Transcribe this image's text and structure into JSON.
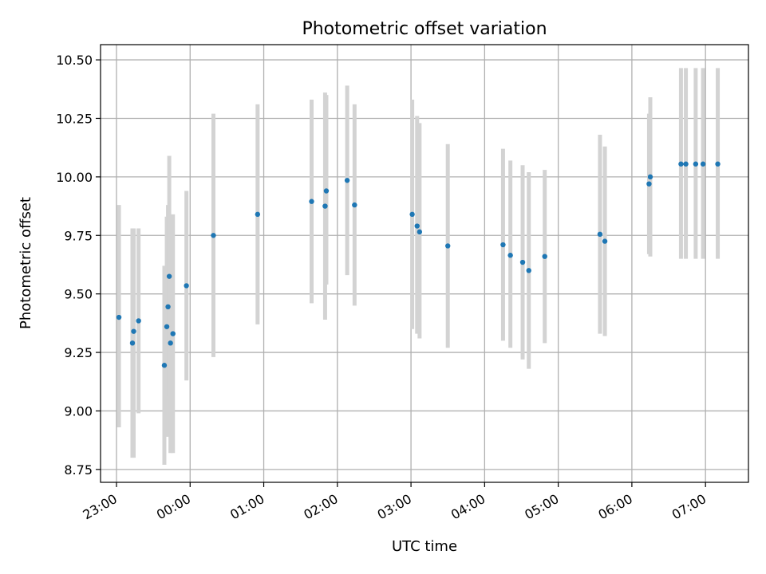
{
  "chart_data": {
    "type": "scatter",
    "title": "Photometric offset variation",
    "xlabel": "UTC time",
    "ylabel": "Photometric offset",
    "x_is_time": true,
    "x_range": [
      "22:47",
      "07:35"
    ],
    "ylim": [
      8.695,
      10.565
    ],
    "x_ticks": [
      "23:00",
      "00:00",
      "01:00",
      "02:00",
      "03:00",
      "04:00",
      "05:00",
      "06:00",
      "07:00"
    ],
    "y_ticks": [
      8.75,
      9.0,
      9.25,
      9.5,
      9.75,
      10.0,
      10.25,
      10.5
    ],
    "y_tick_labels": [
      "8.75",
      "9.00",
      "9.25",
      "9.50",
      "9.75",
      "10.00",
      "10.25",
      "10.50"
    ],
    "grid": true,
    "colors": {
      "point": "#1f77b4",
      "errorbar": "#d3d3d3",
      "grid": "#b0b0b0"
    },
    "points": [
      {
        "t": "23:02",
        "y": 9.4,
        "lo": 8.93,
        "hi": 9.88
      },
      {
        "t": "23:13",
        "y": 9.29,
        "lo": 8.8,
        "hi": 9.78
      },
      {
        "t": "23:14",
        "y": 9.34,
        "lo": 8.8,
        "hi": 9.78
      },
      {
        "t": "23:18",
        "y": 9.385,
        "lo": 8.99,
        "hi": 9.78
      },
      {
        "t": "23:39",
        "y": 9.195,
        "lo": 8.77,
        "hi": 9.62
      },
      {
        "t": "23:41",
        "y": 9.36,
        "lo": 8.89,
        "hi": 9.83
      },
      {
        "t": "23:42",
        "y": 9.445,
        "lo": 8.89,
        "hi": 9.88
      },
      {
        "t": "23:43",
        "y": 9.575,
        "lo": 9.06,
        "hi": 10.09
      },
      {
        "t": "23:44",
        "y": 9.29,
        "lo": 8.82,
        "hi": 9.76
      },
      {
        "t": "23:46",
        "y": 9.33,
        "lo": 8.82,
        "hi": 9.84
      },
      {
        "t": "23:57",
        "y": 9.535,
        "lo": 9.13,
        "hi": 9.94
      },
      {
        "t": "00:19",
        "y": 9.75,
        "lo": 9.23,
        "hi": 10.27
      },
      {
        "t": "00:55",
        "y": 9.84,
        "lo": 9.37,
        "hi": 10.31
      },
      {
        "t": "01:39",
        "y": 9.895,
        "lo": 9.46,
        "hi": 10.33
      },
      {
        "t": "01:50",
        "y": 9.875,
        "lo": 9.39,
        "hi": 10.36
      },
      {
        "t": "01:51",
        "y": 9.94,
        "lo": 9.54,
        "hi": 10.35
      },
      {
        "t": "02:08",
        "y": 9.985,
        "lo": 9.58,
        "hi": 10.39
      },
      {
        "t": "02:14",
        "y": 9.88,
        "lo": 9.45,
        "hi": 10.31
      },
      {
        "t": "03:01",
        "y": 9.84,
        "lo": 9.35,
        "hi": 10.33
      },
      {
        "t": "03:05",
        "y": 9.79,
        "lo": 9.33,
        "hi": 10.26
      },
      {
        "t": "03:07",
        "y": 9.765,
        "lo": 9.31,
        "hi": 10.23
      },
      {
        "t": "03:30",
        "y": 9.705,
        "lo": 9.27,
        "hi": 10.14
      },
      {
        "t": "04:15",
        "y": 9.71,
        "lo": 9.3,
        "hi": 10.12
      },
      {
        "t": "04:21",
        "y": 9.665,
        "lo": 9.27,
        "hi": 10.07
      },
      {
        "t": "04:31",
        "y": 9.635,
        "lo": 9.22,
        "hi": 10.05
      },
      {
        "t": "04:36",
        "y": 9.6,
        "lo": 9.18,
        "hi": 10.02
      },
      {
        "t": "04:49",
        "y": 9.66,
        "lo": 9.29,
        "hi": 10.03
      },
      {
        "t": "05:34",
        "y": 9.755,
        "lo": 9.33,
        "hi": 10.18
      },
      {
        "t": "05:38",
        "y": 9.725,
        "lo": 9.32,
        "hi": 10.13
      },
      {
        "t": "06:14",
        "y": 9.97,
        "lo": 9.67,
        "hi": 10.27
      },
      {
        "t": "06:15",
        "y": 10.0,
        "lo": 9.66,
        "hi": 10.34
      },
      {
        "t": "06:40",
        "y": 10.055,
        "lo": 9.65,
        "hi": 10.465
      },
      {
        "t": "06:44",
        "y": 10.055,
        "lo": 9.65,
        "hi": 10.465
      },
      {
        "t": "06:52",
        "y": 10.055,
        "lo": 9.65,
        "hi": 10.465
      },
      {
        "t": "06:58",
        "y": 10.055,
        "lo": 9.65,
        "hi": 10.465
      },
      {
        "t": "07:10",
        "y": 10.055,
        "lo": 9.65,
        "hi": 10.465
      }
    ]
  }
}
